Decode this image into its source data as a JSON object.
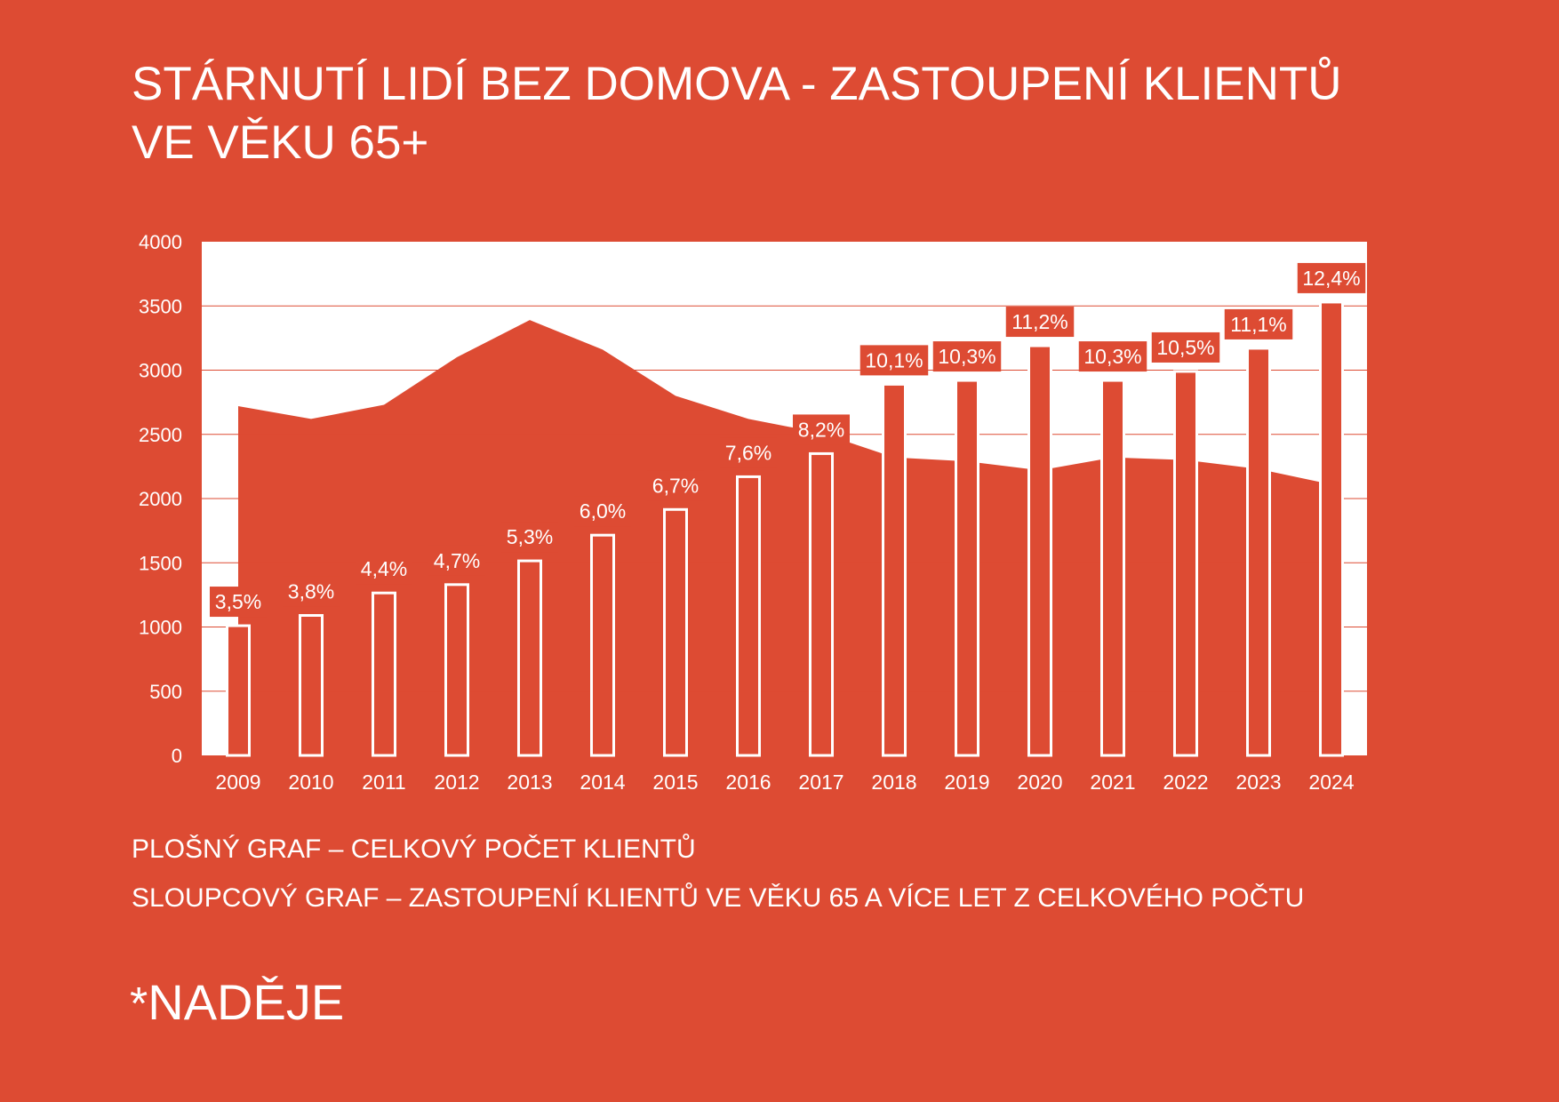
{
  "header": {
    "title_line1": "STÁRNUTÍ LIDÍ BEZ DOMOVA - ZASTOUPENÍ KLIENTŮ",
    "title_line2": "VE VĚKU 65+"
  },
  "captions": {
    "area": "PLOŠNÝ GRAF – CELKOVÝ POČET KLIENTŮ",
    "bar": "SLOUPCOVÝ GRAF – ZASTOUPENÍ KLIENTŮ VE VĚKU 65 A VÍCE LET Z CELKOVÉHO POČTU"
  },
  "logo": {
    "star": "*",
    "text": "NADĚJE"
  },
  "colors": {
    "background": "#dd4b33",
    "plot_area": "#ffffff",
    "ink": "#ffffff"
  },
  "chart_data": {
    "type": "bar",
    "categories": [
      "2009",
      "2010",
      "2011",
      "2012",
      "2013",
      "2014",
      "2015",
      "2016",
      "2017",
      "2018",
      "2019",
      "2020",
      "2021",
      "2022",
      "2023",
      "2024"
    ],
    "ylim": [
      0,
      4000
    ],
    "yticks": [
      0,
      500,
      1000,
      1500,
      2000,
      2500,
      3000,
      3500,
      4000
    ],
    "grid": true,
    "area_series": {
      "values": [
        2720,
        2620,
        2730,
        3100,
        3390,
        3160,
        2800,
        2620,
        2510,
        2320,
        2290,
        2220,
        2320,
        2300,
        2230,
        2110
      ]
    },
    "bar_series": {
      "values": [
        1010,
        1090,
        1265,
        1330,
        1515,
        1715,
        1915,
        2170,
        2350,
        2890,
        2920,
        3190,
        2920,
        2990,
        3170,
        3530
      ],
      "labels": [
        "3,5%",
        "3,8%",
        "4,4%",
        "4,7%",
        "5,3%",
        "6,0%",
        "6,7%",
        "7,6%",
        "8,2%",
        "10,1%",
        "10,3%",
        "11,2%",
        "10,3%",
        "10,5%",
        "11,1%",
        "12,4%"
      ]
    }
  }
}
